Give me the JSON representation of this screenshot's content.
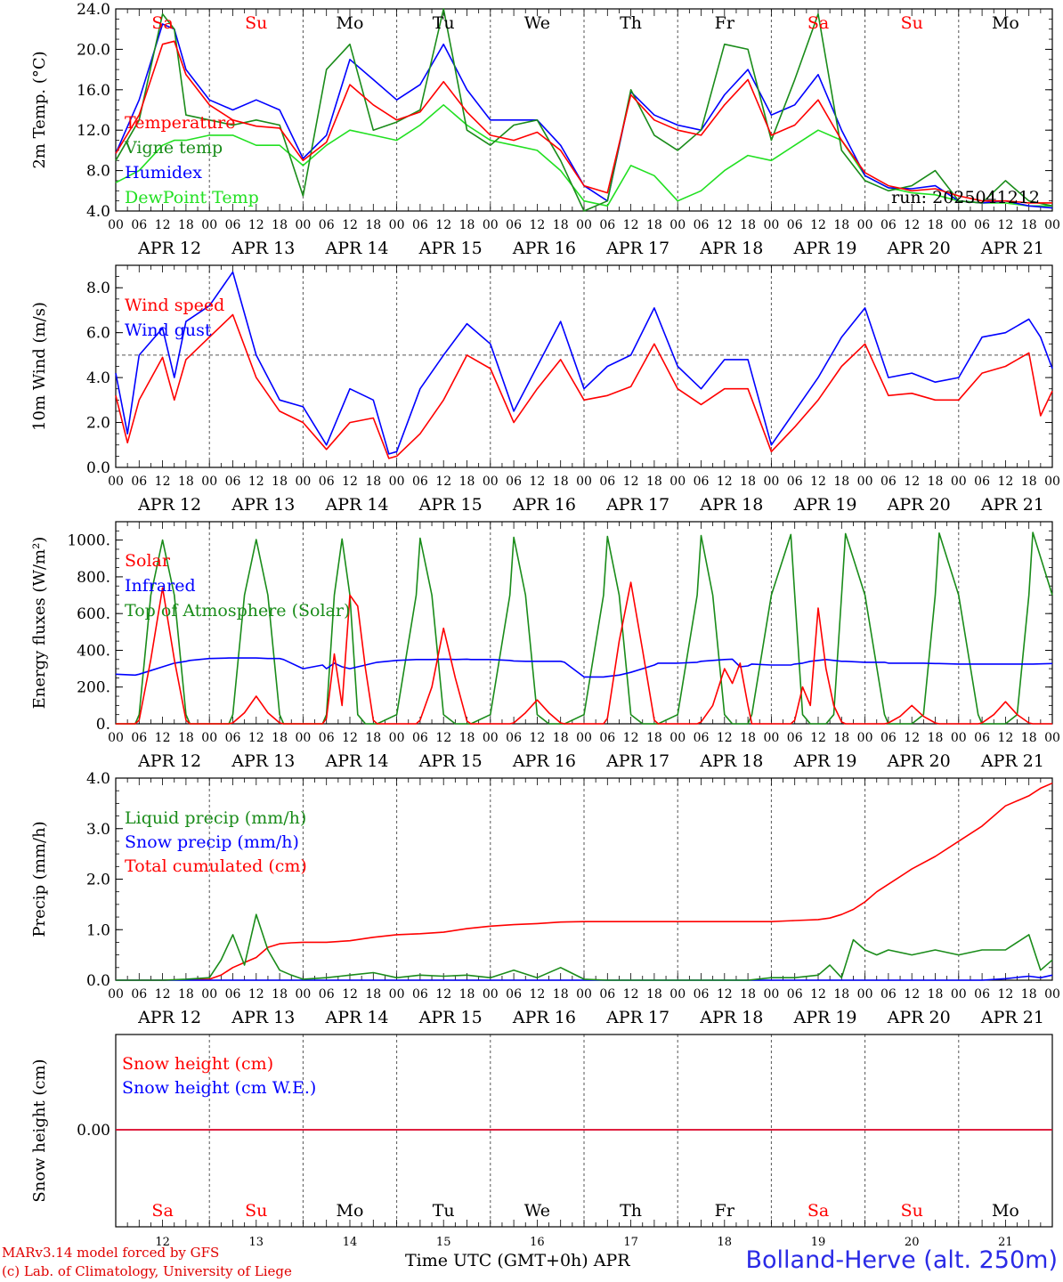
{
  "days": [
    "12",
    "13",
    "14",
    "15",
    "16",
    "17",
    "18",
    "19",
    "20",
    "21"
  ],
  "day_labels": [
    "Sa",
    "Su",
    "Mo",
    "Tu",
    "We",
    "Th",
    "Fr",
    "Sa",
    "Su",
    "Mo"
  ],
  "weekend_indices": [
    0,
    1,
    7,
    8
  ],
  "date_labels": [
    "APR 12",
    "APR 13",
    "APR 14",
    "APR 15",
    "APR 16",
    "APR 17",
    "APR 18",
    "APR 19",
    "APR 20",
    "APR 21"
  ],
  "hour_labels": [
    "00",
    "06",
    "12",
    "18"
  ],
  "colors": {
    "red": "#ff0000",
    "green": "#1a8c1a",
    "blue": "#0000ff",
    "light_green": "#22e022",
    "weekend": "#ff0000"
  },
  "run_label": "run: 2025041212",
  "footer": {
    "model": "MARv3.14 model forced by GFS",
    "credit": "(c) Lab. of Climatology, University of Liege",
    "x_title": "Time UTC (GMT+0h) APR",
    "station": "Bolland-Herve (alt. 250m)"
  },
  "chart_data": [
    {
      "type": "line",
      "ylabel": "2m Temp. (°C)",
      "ylim": [
        4,
        24
      ],
      "yticks": [
        4,
        8,
        12,
        16,
        20,
        24
      ],
      "yticklabels": [
        "4.0",
        "8.0",
        "12.0",
        "16.0",
        "20.0",
        "24.0"
      ],
      "x_hours": [
        0,
        6,
        12,
        15,
        18,
        24,
        30,
        36,
        42,
        48,
        54,
        60,
        66,
        72,
        78,
        84,
        90,
        96,
        102,
        108,
        114,
        120,
        126,
        132,
        138,
        144,
        150,
        156,
        162,
        168,
        174,
        180,
        186,
        192,
        198,
        204,
        210,
        216,
        222,
        228,
        234,
        240
      ],
      "series": [
        {
          "name": "Temperature",
          "color": "#ff0000",
          "values": [
            9.7,
            13.5,
            20.5,
            20.8,
            17.5,
            14.5,
            13.0,
            12.4,
            12.2,
            9.0,
            10.8,
            16.5,
            14.5,
            13.0,
            13.8,
            16.8,
            13.8,
            11.5,
            11.0,
            11.8,
            10.0,
            6.5,
            5.8,
            15.5,
            13.0,
            12.0,
            11.5,
            14.5,
            17.0,
            11.5,
            12.5,
            15.0,
            11.0,
            7.8,
            6.5,
            6.0,
            6.2,
            5.5,
            5.0,
            5.0,
            4.8,
            4.8
          ]
        },
        {
          "name": "Vigne temp",
          "color": "#1a8c1a",
          "values": [
            9.0,
            13.0,
            23.5,
            22.0,
            13.5,
            13.0,
            12.5,
            13.0,
            12.5,
            5.5,
            18.0,
            20.5,
            12.0,
            12.8,
            14.0,
            24.0,
            12.0,
            10.5,
            12.5,
            13.0,
            9.0,
            4.0,
            5.0,
            16.0,
            11.5,
            10.0,
            12.0,
            20.5,
            20.0,
            11.0,
            17.0,
            23.5,
            10.0,
            7.0,
            6.0,
            6.5,
            8.0,
            5.0,
            4.8,
            7.0,
            5.0,
            4.5
          ]
        },
        {
          "name": "Humidex",
          "color": "#0000ff",
          "values": [
            9.7,
            15.0,
            22.5,
            22.0,
            18.0,
            15.0,
            14.0,
            15.0,
            14.0,
            9.2,
            11.5,
            19.0,
            17.0,
            15.0,
            16.5,
            20.5,
            16.0,
            13.0,
            13.0,
            13.0,
            10.5,
            6.5,
            5.0,
            15.8,
            13.5,
            12.5,
            12.0,
            15.5,
            18.0,
            13.5,
            14.5,
            17.5,
            12.0,
            7.5,
            6.3,
            6.2,
            6.5,
            5.0,
            4.8,
            5.0,
            4.5,
            4.3
          ]
        },
        {
          "name": "DewPoint Temp",
          "color": "#22e022",
          "values": [
            6.8,
            8.0,
            10.5,
            11.0,
            11.0,
            11.5,
            11.5,
            10.5,
            10.5,
            8.5,
            10.5,
            12.0,
            11.5,
            11.0,
            12.5,
            14.5,
            12.5,
            11.0,
            10.5,
            10.0,
            8.0,
            5.0,
            4.5,
            8.5,
            7.5,
            5.0,
            6.0,
            8.0,
            9.5,
            9.0,
            10.5,
            12.0,
            11.0,
            7.5,
            6.3,
            5.8,
            5.6,
            5.0,
            4.8,
            4.8,
            4.5,
            4.5
          ]
        }
      ]
    },
    {
      "type": "line",
      "ylabel": "10m Wind (m/s)",
      "ylim": [
        0,
        9
      ],
      "yticks": [
        0,
        2,
        4,
        6,
        8
      ],
      "yticklabels": [
        "0.0",
        "2.0",
        "4.0",
        "6.0",
        "8.0"
      ],
      "reference_line": 5.0,
      "x_hours": [
        0,
        3,
        6,
        12,
        15,
        18,
        24,
        30,
        36,
        42,
        48,
        54,
        60,
        66,
        70,
        72,
        78,
        84,
        90,
        96,
        102,
        108,
        114,
        120,
        126,
        132,
        138,
        144,
        150,
        156,
        162,
        168,
        174,
        180,
        186,
        192,
        198,
        204,
        210,
        216,
        222,
        228,
        234,
        237,
        240
      ],
      "series": [
        {
          "name": "Wind speed",
          "color": "#ff0000",
          "values": [
            3.2,
            1.1,
            3.0,
            4.9,
            3.0,
            4.8,
            5.8,
            6.8,
            4.0,
            2.5,
            2.0,
            0.8,
            2.0,
            2.2,
            0.4,
            0.5,
            1.5,
            3.0,
            5.0,
            4.4,
            2.0,
            3.5,
            4.8,
            3.0,
            3.2,
            3.6,
            5.5,
            3.5,
            2.8,
            3.5,
            3.5,
            0.7,
            1.8,
            3.0,
            4.5,
            5.5,
            3.2,
            3.3,
            3.0,
            3.0,
            4.2,
            4.5,
            5.1,
            2.3,
            3.4
          ]
        },
        {
          "name": "Wind gust",
          "color": "#0000ff",
          "values": [
            4.2,
            1.5,
            5.0,
            6.2,
            4.0,
            6.5,
            7.2,
            8.7,
            5.0,
            3.0,
            2.7,
            1.0,
            3.5,
            3.0,
            0.6,
            0.7,
            3.5,
            5.0,
            6.4,
            5.5,
            2.5,
            4.5,
            6.5,
            3.5,
            4.5,
            5.0,
            7.1,
            4.5,
            3.5,
            4.8,
            4.8,
            1.0,
            2.5,
            4.0,
            5.8,
            7.1,
            4.0,
            4.2,
            3.8,
            4.0,
            5.8,
            6.0,
            6.6,
            5.8,
            4.4
          ]
        }
      ]
    },
    {
      "type": "line",
      "ylabel": "Energy fluxes (W/m²)",
      "ylim": [
        0,
        1100
      ],
      "yticks": [
        0,
        200,
        400,
        600,
        800,
        1000
      ],
      "yticklabels": [
        "0.",
        "200.",
        "400.",
        "600.",
        "800.",
        "1000."
      ],
      "x_hours": [
        0,
        5,
        6,
        9,
        12,
        15,
        18,
        19,
        24,
        29,
        30,
        33,
        36,
        39,
        42,
        43,
        48,
        53,
        54,
        56,
        58,
        60,
        62,
        64,
        66,
        67,
        72,
        77,
        78,
        81,
        84,
        87,
        90,
        91,
        96,
        101,
        102,
        105,
        108,
        111,
        114,
        115,
        120,
        125,
        126,
        129,
        132,
        135,
        138,
        139,
        144,
        149,
        150,
        153,
        156,
        158,
        160,
        162,
        163,
        168,
        173,
        174,
        176,
        178,
        180,
        182,
        184,
        186,
        187,
        192,
        197,
        198,
        201,
        204,
        207,
        210,
        211,
        216,
        221,
        222,
        225,
        228,
        231,
        234,
        235,
        240
      ],
      "series": [
        {
          "name": "Solar",
          "color": "#ff0000",
          "values": [
            0,
            0,
            20,
            350,
            740,
            350,
            20,
            0,
            0,
            0,
            5,
            60,
            150,
            60,
            5,
            0,
            0,
            0,
            30,
            380,
            100,
            700,
            640,
            300,
            20,
            0,
            0,
            0,
            20,
            200,
            520,
            250,
            15,
            0,
            0,
            0,
            5,
            60,
            130,
            60,
            5,
            0,
            0,
            0,
            30,
            450,
            770,
            400,
            20,
            0,
            0,
            0,
            10,
            100,
            300,
            220,
            330,
            100,
            0,
            0,
            0,
            20,
            200,
            100,
            630,
            300,
            100,
            10,
            0,
            0,
            0,
            5,
            40,
            100,
            40,
            5,
            0,
            0,
            0,
            5,
            50,
            120,
            50,
            5,
            0,
            0
          ]
        },
        {
          "name": "Infrared",
          "color": "#0000ff",
          "values": [
            270,
            265,
            270,
            290,
            310,
            330,
            340,
            345,
            355,
            358,
            358,
            358,
            358,
            355,
            355,
            350,
            300,
            320,
            300,
            330,
            310,
            300,
            310,
            320,
            330,
            335,
            345,
            350,
            350,
            350,
            352,
            350,
            352,
            350,
            350,
            345,
            342,
            340,
            340,
            340,
            340,
            335,
            255,
            255,
            258,
            265,
            280,
            300,
            320,
            330,
            330,
            335,
            340,
            345,
            350,
            352,
            310,
            315,
            325,
            320,
            320,
            325,
            330,
            340,
            345,
            350,
            345,
            340,
            340,
            335,
            335,
            330,
            330,
            330,
            330,
            328,
            328,
            325,
            325,
            325,
            325,
            325,
            325,
            325,
            325,
            328
          ]
        },
        {
          "name": "Top of Atmosphere (Solar)",
          "color": "#1a8c1a",
          "values": [
            0,
            0,
            50,
            700,
            1000,
            700,
            50,
            0,
            0,
            0,
            50,
            700,
            1003,
            700,
            50,
            0,
            0,
            0,
            50,
            700,
            1006,
            700,
            50,
            0,
            0,
            0,
            50,
            700,
            1010,
            700,
            50,
            0,
            0,
            0,
            50,
            700,
            1015,
            700,
            50,
            0,
            0,
            0,
            50,
            700,
            1020,
            700,
            50,
            0,
            0,
            0,
            50,
            700,
            1025,
            700,
            50,
            0,
            0,
            0,
            50,
            700,
            1030,
            700,
            50,
            0,
            0,
            0,
            50,
            700,
            1035,
            700,
            50,
            0,
            0,
            0,
            50,
            700,
            1038,
            700,
            50,
            0,
            0,
            0,
            50,
            700,
            1042,
            700
          ]
        }
      ]
    },
    {
      "type": "line",
      "ylabel": "Precip (mm/h)",
      "ylim": [
        0,
        4
      ],
      "yticks": [
        0,
        1,
        2,
        3,
        4
      ],
      "yticklabels": [
        "0.0",
        "1.0",
        "2.0",
        "3.0",
        "4.0"
      ],
      "x_hours": [
        0,
        12,
        18,
        24,
        27,
        30,
        33,
        36,
        39,
        42,
        45,
        48,
        54,
        60,
        66,
        72,
        78,
        84,
        90,
        96,
        102,
        108,
        114,
        120,
        126,
        132,
        138,
        144,
        150,
        156,
        162,
        168,
        174,
        180,
        183,
        186,
        189,
        192,
        195,
        198,
        204,
        210,
        216,
        222,
        228,
        234,
        237,
        240
      ],
      "series": [
        {
          "name": "Liquid precip (mm/h)",
          "color": "#1a8c1a",
          "values": [
            0,
            0,
            0.02,
            0.05,
            0.4,
            0.9,
            0.3,
            1.3,
            0.6,
            0.2,
            0.1,
            0.02,
            0.05,
            0.1,
            0.15,
            0.05,
            0.1,
            0.08,
            0.1,
            0.05,
            0.2,
            0.05,
            0.25,
            0.02,
            0,
            0,
            0,
            0,
            0,
            0,
            0,
            0.05,
            0.05,
            0.1,
            0.3,
            0.05,
            0.8,
            0.6,
            0.5,
            0.6,
            0.5,
            0.6,
            0.5,
            0.6,
            0.6,
            0.9,
            0.2,
            0.4
          ]
        },
        {
          "name": "Snow precip (mm/h)",
          "color": "#0000ff",
          "values": [
            0,
            0,
            0,
            0,
            0,
            0,
            0,
            0,
            0,
            0,
            0,
            0,
            0,
            0,
            0,
            0,
            0,
            0,
            0,
            0,
            0,
            0,
            0,
            0,
            0,
            0,
            0,
            0,
            0,
            0,
            0,
            0,
            0,
            0,
            0,
            0,
            0,
            0,
            0,
            0,
            0,
            0,
            0,
            0,
            0.03,
            0.08,
            0.05,
            0.1
          ]
        },
        {
          "name": "Total cumulated (cm)",
          "color": "#ff0000",
          "values": [
            0,
            0,
            0.01,
            0.02,
            0.1,
            0.25,
            0.35,
            0.45,
            0.65,
            0.72,
            0.74,
            0.75,
            0.75,
            0.78,
            0.85,
            0.9,
            0.92,
            0.95,
            1.02,
            1.07,
            1.1,
            1.12,
            1.15,
            1.16,
            1.16,
            1.16,
            1.16,
            1.16,
            1.16,
            1.16,
            1.16,
            1.16,
            1.18,
            1.2,
            1.23,
            1.3,
            1.4,
            1.55,
            1.75,
            1.9,
            2.2,
            2.45,
            2.75,
            3.05,
            3.45,
            3.65,
            3.8,
            3.9
          ]
        }
      ]
    },
    {
      "type": "line",
      "ylabel": "Snow height (cm)",
      "yticks": [
        0
      ],
      "yticklabels": [
        "0.00"
      ],
      "x_hours": [
        0,
        240
      ],
      "series": [
        {
          "name": "Snow height (cm)",
          "color": "#ff0000",
          "values": [
            0,
            0
          ]
        },
        {
          "name": "Snow height (cm W.E.)",
          "color": "#0000ff",
          "values": [
            0,
            0
          ]
        }
      ]
    }
  ]
}
